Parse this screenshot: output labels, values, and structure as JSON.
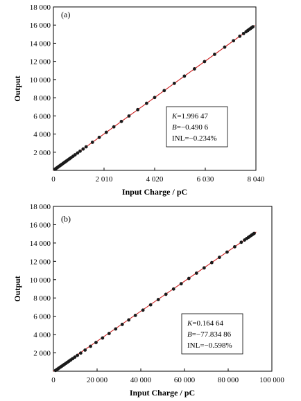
{
  "chart_data": [
    {
      "panel": "(a)",
      "type": "scatter",
      "xlabel": "Input Charge / pC",
      "ylabel": "Output",
      "xlim": [
        0,
        8040
      ],
      "ylim": [
        0,
        18000
      ],
      "xticks": [
        0,
        2010,
        4020,
        6030,
        8040
      ],
      "xtick_labels": [
        "0",
        "2 010",
        "4 020",
        "6 030",
        "8 040"
      ],
      "yticks": [
        2000,
        4000,
        6000,
        8000,
        10000,
        12000,
        14000,
        16000,
        18000
      ],
      "ytick_labels": [
        "2 000",
        "4 000",
        "6 000",
        "8 000",
        "10 000",
        "12 000",
        "14 000",
        "16 000",
        "18 000"
      ],
      "fit": {
        "slope": 1.99647,
        "intercept": -0.4906
      },
      "stats": {
        "k_label": "K",
        "k_value": "=1.996 47",
        "b_label": "B",
        "b_value": "=−0.490 6",
        "inl": "INL=−0.234%"
      },
      "x": [
        60,
        90,
        130,
        170,
        210,
        250,
        290,
        330,
        380,
        430,
        470,
        520,
        580,
        640,
        700,
        780,
        860,
        960,
        1060,
        1180,
        1300,
        1550,
        1820,
        2100,
        2400,
        2700,
        3000,
        3350,
        3700,
        4020,
        4400,
        4800,
        5200,
        5600,
        6000,
        6400,
        6800,
        7150,
        7400,
        7550,
        7650,
        7720,
        7780,
        7830,
        7880,
        7920
      ],
      "y": [
        119.3,
        179.2,
        259.1,
        338.9,
        418.8,
        498.6,
        578.5,
        658.4,
        758.2,
        858.0,
        937.9,
        1037.7,
        1157.5,
        1277.3,
        1397.0,
        1556.8,
        1716.5,
        1916.1,
        2115.8,
        2355.4,
        2595.0,
        3094.1,
        3633.3,
        4192.1,
        4791.0,
        5389.0,
        5988.9,
        6687.7,
        7386.4,
        8025.3,
        8783.7,
        9582.6,
        10381.2,
        11179.7,
        11978.3,
        12778.9,
        13575.5,
        14274.3,
        14773.4,
        15072.9,
        15272.5,
        15412.4,
        15532.1,
        15631.9,
        15731.8,
        15811.6
      ]
    },
    {
      "panel": "(b)",
      "type": "scatter",
      "xlabel": "Input Charge / pC",
      "ylabel": "Output",
      "xlim": [
        0,
        100000
      ],
      "ylim": [
        0,
        18000
      ],
      "xticks": [
        0,
        20000,
        40000,
        60000,
        80000,
        100000
      ],
      "xtick_labels": [
        "0",
        "20 000",
        "40 000",
        "60 000",
        "80 000",
        "100 000"
      ],
      "yticks": [
        2000,
        4000,
        6000,
        8000,
        10000,
        12000,
        14000,
        16000,
        18000
      ],
      "ytick_labels": [
        "2 000",
        "4 000",
        "6 000",
        "8 000",
        "10 000",
        "12 000",
        "14 000",
        "16 000",
        "18 000"
      ],
      "fit": {
        "slope": 0.16464,
        "intercept": -77.83486
      },
      "stats": {
        "k_label": "K",
        "k_value": "=0.164 64",
        "b_label": "B",
        "b_value": "=−77.834 86",
        "inl": "INL=−0.598%"
      },
      "x": [
        1000,
        1500,
        2000,
        2600,
        3200,
        3800,
        4400,
        5000,
        5700,
        6400,
        7100,
        7900,
        8800,
        9800,
        11000,
        12500,
        14500,
        17000,
        19500,
        22500,
        25500,
        28500,
        31500,
        34500,
        37500,
        41000,
        44500,
        48000,
        51500,
        55000,
        58500,
        62000,
        65500,
        69000,
        72500,
        76000,
        79500,
        83000,
        86000,
        87500,
        88500,
        89300,
        90000,
        90700,
        91300,
        91900
      ],
      "y": [
        86.8,
        169.1,
        251.4,
        350.2,
        449.0,
        547.8,
        646.6,
        745.4,
        860.6,
        975.9,
        1091.1,
        1222.8,
        1371.0,
        1535.6,
        1733.2,
        1980.2,
        2309.4,
        2721.0,
        3132.6,
        3626.6,
        4120.5,
        4614.4,
        5108.4,
        5602.3,
        6096.2,
        6672.4,
        7248.7,
        7824.9,
        8401.2,
        8977.4,
        9553.6,
        10129.9,
        10706.1,
        11282.3,
        11858.6,
        12434.8,
        13011.1,
        13587.3,
        14081.2,
        14328.2,
        14492.8,
        14624.5,
        14739.8,
        14855.0,
        14953.8,
        15052.6
      ]
    }
  ]
}
